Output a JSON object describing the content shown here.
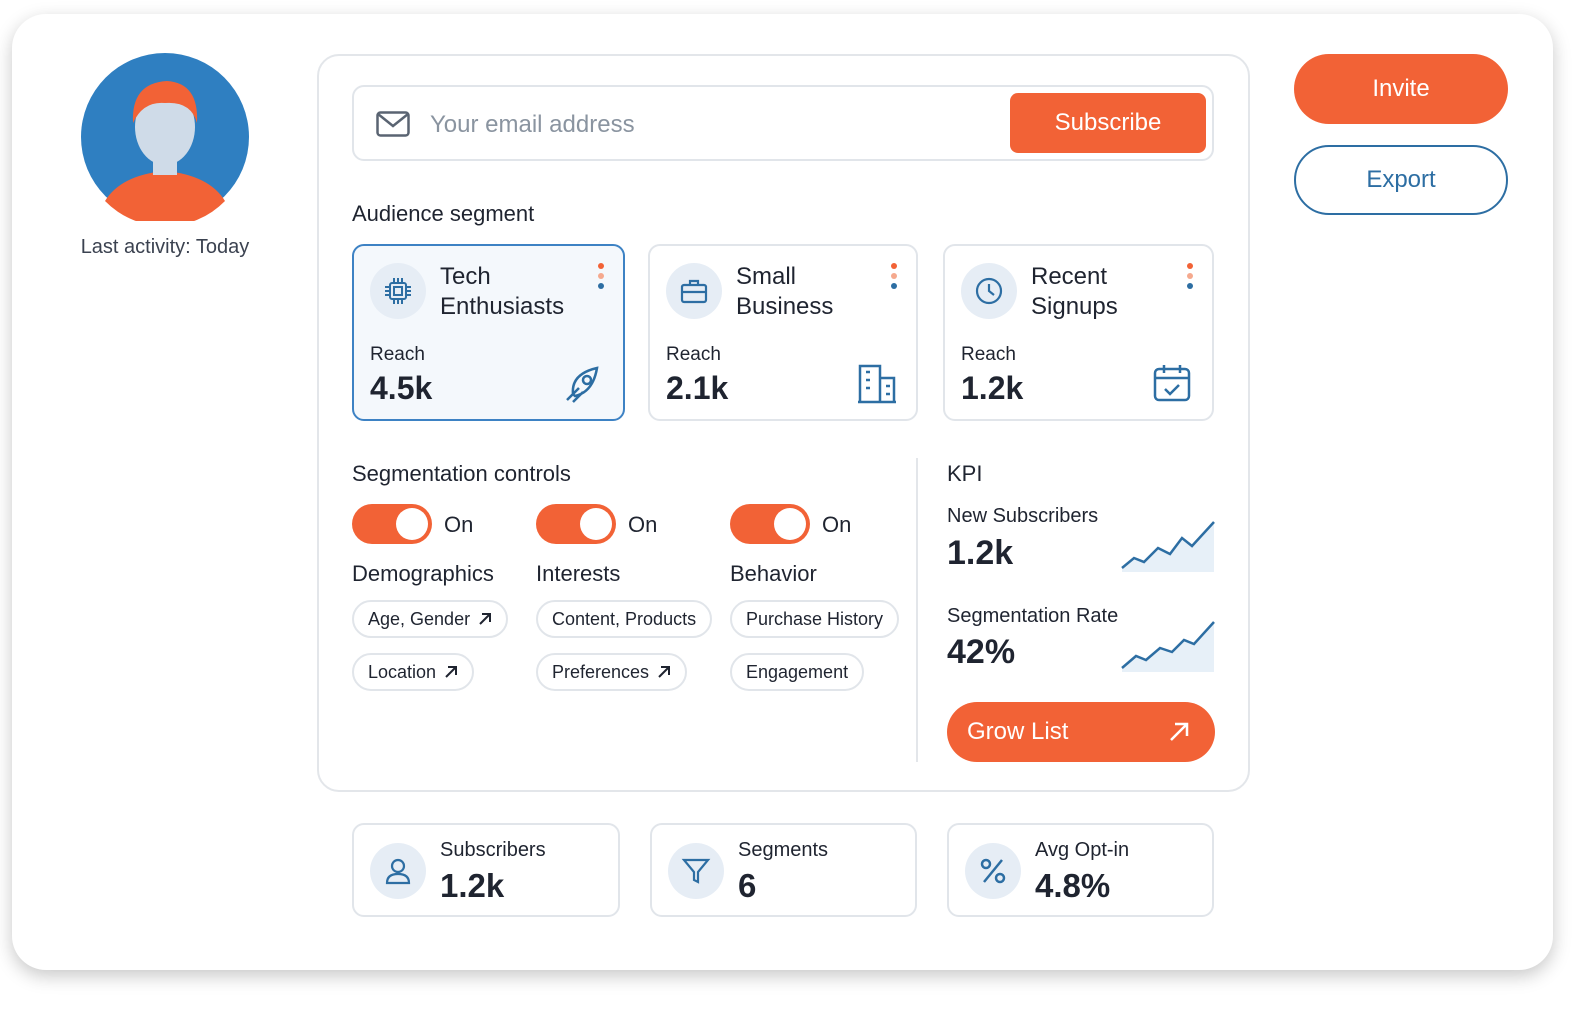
{
  "profile": {
    "activity": "Last activity: Today"
  },
  "email_form": {
    "placeholder": "Your email address",
    "button": "Subscribe"
  },
  "actions": {
    "invite": "Invite",
    "export": "Export"
  },
  "audience": {
    "title": "Audience segment",
    "cards": [
      {
        "name": "Tech Enthusiasts",
        "metric": "Reach",
        "value": "4.5k"
      },
      {
        "name": "Small Business",
        "metric": "Reach",
        "value": "2.1k"
      },
      {
        "name": "Recent Signups",
        "metric": "Reach",
        "value": "1.2k"
      }
    ]
  },
  "controls": {
    "title": "Segmentation controls",
    "groups": [
      {
        "state": "On",
        "label": "Demographics",
        "tags": [
          "Age, Gender",
          "Location"
        ]
      },
      {
        "state": "On",
        "label": "Interests",
        "tags": [
          "Content, Products",
          "Preferences"
        ]
      },
      {
        "state": "On",
        "label": "Behavior",
        "tags": [
          "Purchase History",
          "Engagement"
        ]
      }
    ]
  },
  "kpi": {
    "title": "KPI",
    "items": [
      {
        "label": "New Subscribers",
        "value": "1.2k"
      },
      {
        "label": "Segmentation Rate",
        "value": "42%"
      }
    ],
    "button": "Grow List"
  },
  "stats": [
    {
      "label": "Subscribers",
      "value": "1.2k"
    },
    {
      "label": "Segments",
      "value": "6"
    },
    {
      "label": "Avg Opt-in",
      "value": "4.8%"
    }
  ]
}
